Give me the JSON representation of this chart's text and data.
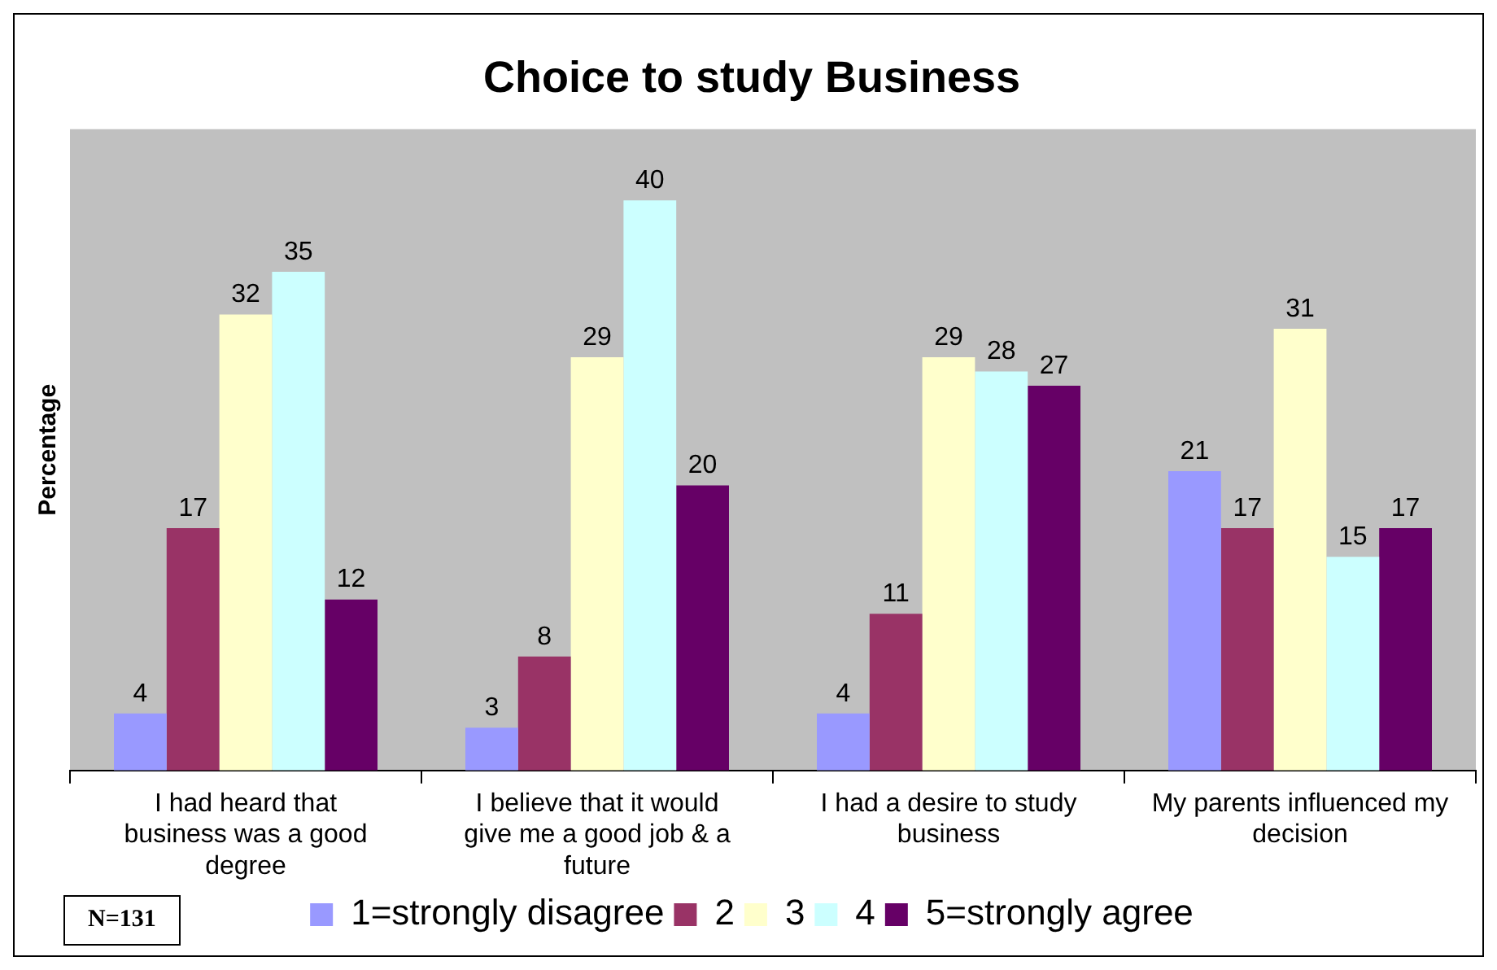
{
  "chart_data": {
    "type": "bar",
    "title": "Choice to study Business",
    "ylabel": "Percentage",
    "categories": [
      "I had heard that business was a good degree",
      "I believe that it would give me a good job & a future",
      "I had a desire to study business",
      "My parents influenced my decision"
    ],
    "series": [
      {
        "name": "1=strongly disagree",
        "color": "#9999ff",
        "values": [
          4,
          3,
          4,
          21
        ]
      },
      {
        "name": "2",
        "color": "#993366",
        "values": [
          17,
          8,
          11,
          17
        ]
      },
      {
        "name": "3",
        "color": "#ffffcc",
        "values": [
          32,
          29,
          29,
          31
        ]
      },
      {
        "name": "4",
        "color": "#ccffff",
        "values": [
          35,
          40,
          28,
          15
        ]
      },
      {
        "name": "5=strongly agree",
        "color": "#660066",
        "values": [
          12,
          20,
          27,
          17
        ]
      }
    ],
    "data_labels": true,
    "grid": false,
    "legend": "bottom",
    "tick_labels": "x",
    "annotations": [
      "N=131"
    ]
  }
}
